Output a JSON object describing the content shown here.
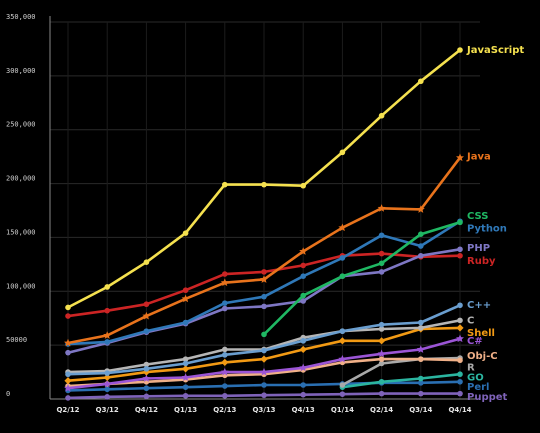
{
  "chart_data": {
    "type": "line",
    "title": "",
    "xlabel": "",
    "ylabel": "",
    "categories": [
      "Q2/12",
      "Q3/12",
      "Q4/12",
      "Q1/13",
      "Q2/13",
      "Q3/13",
      "Q4/13",
      "Q1/14",
      "Q2/14",
      "Q3/14",
      "Q4/14"
    ],
    "ylim": [
      0,
      350000
    ],
    "yticks": [
      {
        "value": 0,
        "label": "0"
      },
      {
        "value": 50000,
        "label": "50000"
      },
      {
        "value": 100000,
        "label": "100,000"
      },
      {
        "value": 150000,
        "label": "150,000"
      },
      {
        "value": 200000,
        "label": "200,000"
      },
      {
        "value": 250000,
        "label": "250,000"
      },
      {
        "value": 300000,
        "label": "300,000"
      },
      {
        "value": 350000,
        "label": "350,000"
      }
    ],
    "grid": true,
    "legend": "end-of-line labels on right",
    "series": [
      {
        "name": "JavaScript",
        "color": "#f5e14f",
        "marker": "circle",
        "label_value": 325000,
        "values": [
          85000,
          104000,
          127000,
          154000,
          199000,
          199000,
          198000,
          229000,
          263000,
          295000,
          324000
        ]
      },
      {
        "name": "Java",
        "color": "#e8731c",
        "marker": "star",
        "label_value": 226000,
        "values": [
          52000,
          59000,
          77000,
          93000,
          108000,
          111000,
          137000,
          159000,
          177000,
          176000,
          224000
        ]
      },
      {
        "name": "CSS",
        "color": "#1fb863",
        "marker": "circle",
        "label_value": 171000,
        "values": [
          null,
          null,
          null,
          null,
          null,
          60000,
          96000,
          114000,
          126000,
          153000,
          164000
        ]
      },
      {
        "name": "Python",
        "color": "#2f78b8",
        "marker": "circle",
        "label_value": 159000,
        "values": [
          51000,
          53000,
          63000,
          71000,
          89000,
          95000,
          114000,
          131000,
          152000,
          142000,
          165000
        ]
      },
      {
        "name": "PHP",
        "color": "#7e77c4",
        "marker": "circle",
        "label_value": 141000,
        "values": [
          43000,
          52000,
          62000,
          70000,
          84000,
          86000,
          91000,
          114000,
          118000,
          133000,
          139000
        ]
      },
      {
        "name": "Ruby",
        "color": "#cc2424",
        "marker": "circle",
        "label_value": 129000,
        "values": [
          77000,
          82000,
          88000,
          101000,
          116000,
          118000,
          124000,
          133000,
          135000,
          132000,
          133000
        ]
      },
      {
        "name": "C++",
        "color": "#6a9ecf",
        "marker": "circle",
        "label_value": 88000,
        "values": [
          23000,
          24000,
          28000,
          33000,
          41000,
          45000,
          54000,
          63000,
          69000,
          71000,
          87000
        ]
      },
      {
        "name": "C",
        "color": "#b6b6b6",
        "marker": "circle",
        "label_value": 74000,
        "values": [
          25000,
          26000,
          32000,
          37000,
          46000,
          46000,
          57000,
          63000,
          65000,
          66000,
          73000
        ]
      },
      {
        "name": "Shell",
        "color": "#f29a14",
        "marker": "diamond",
        "label_value": 62000,
        "values": [
          17000,
          20000,
          25000,
          28000,
          34000,
          37000,
          46000,
          54000,
          54000,
          65000,
          66000
        ]
      },
      {
        "name": "C#",
        "color": "#9b55d6",
        "marker": "star",
        "label_value": 55000,
        "values": [
          10000,
          14000,
          19000,
          20000,
          25000,
          25000,
          29000,
          37000,
          42000,
          46000,
          56000
        ]
      },
      {
        "name": "Obj-C",
        "color": "#f0b088",
        "marker": "circle",
        "label_value": 41000,
        "values": [
          12000,
          14000,
          16000,
          18000,
          22000,
          23000,
          27000,
          34000,
          37000,
          37000,
          36000
        ]
      },
      {
        "name": "R",
        "color": "#a9a9a9",
        "marker": "circle",
        "label_value": 30000,
        "values": [
          null,
          null,
          null,
          null,
          null,
          null,
          null,
          13000,
          33000,
          37000,
          38000
        ]
      },
      {
        "name": "GO",
        "color": "#2bb5a0",
        "marker": "circle",
        "label_value": 21000,
        "values": [
          null,
          null,
          null,
          null,
          null,
          null,
          null,
          11000,
          16000,
          19000,
          23000
        ]
      },
      {
        "name": "Perl",
        "color": "#2a6fb2",
        "marker": "circle",
        "label_value": 12000,
        "values": [
          8000,
          9000,
          10000,
          11000,
          12000,
          13000,
          13000,
          14000,
          15000,
          15000,
          16000
        ]
      },
      {
        "name": "Puppet",
        "color": "#7f63b9",
        "marker": "circle",
        "label_value": 3000,
        "values": [
          1000,
          2000,
          2500,
          3000,
          3000,
          3500,
          4000,
          4500,
          5000,
          5000,
          5000
        ]
      }
    ]
  }
}
